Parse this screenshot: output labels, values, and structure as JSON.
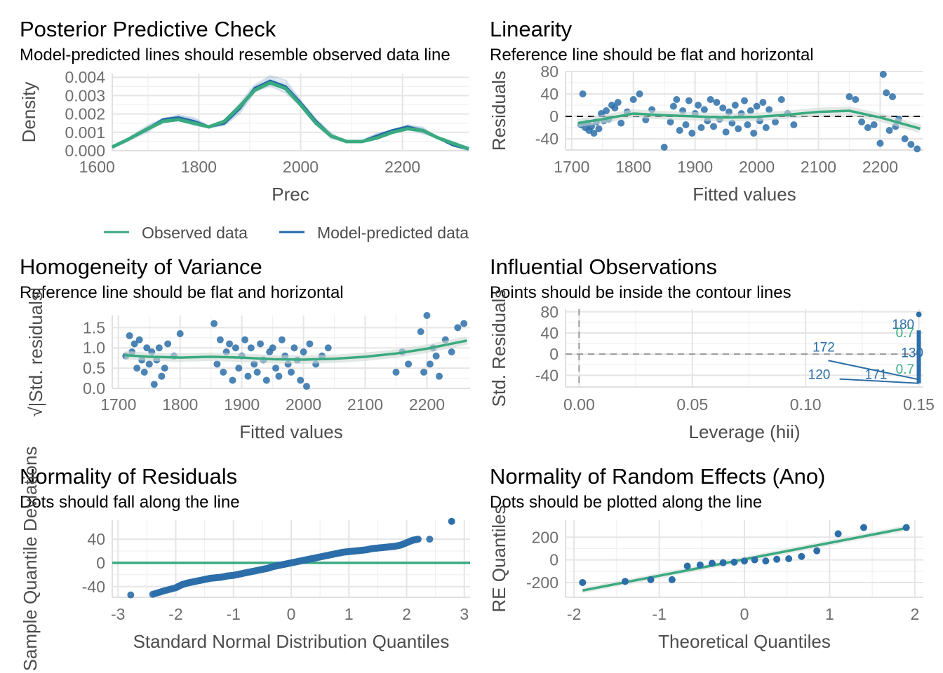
{
  "colors": {
    "observed": "#3aaa80",
    "predicted": "#2066a8",
    "points": "#2c6ea8",
    "reference": "#3aaa80"
  },
  "chart_data": [
    {
      "id": "ppc",
      "type": "line",
      "title": "Posterior Predictive Check",
      "subtitle": "Model-predicted lines should resemble observed data line",
      "xlabel": "Prec",
      "ylabel": "Density",
      "xlim": [
        1630,
        2330
      ],
      "ylim": [
        0,
        0.0042
      ],
      "xticks": [
        "1600",
        "1800",
        "2000",
        "2200"
      ],
      "yticks": [
        "0.000",
        "0.001",
        "0.002",
        "0.003",
        "0.004"
      ],
      "legend": [
        "Observed data",
        "Model-predicted data"
      ],
      "legend_position": "bottom",
      "series": [
        {
          "name": "Observed data",
          "x": [
            1630,
            1660,
            1700,
            1730,
            1760,
            1790,
            1820,
            1850,
            1880,
            1910,
            1940,
            1970,
            2000,
            2030,
            2060,
            2090,
            2120,
            2150,
            2180,
            2210,
            2240,
            2270,
            2300,
            2330
          ],
          "y": [
            0.0002,
            0.0006,
            0.0012,
            0.0016,
            0.0017,
            0.0015,
            0.0013,
            0.0016,
            0.0024,
            0.0033,
            0.0037,
            0.0034,
            0.0025,
            0.0015,
            0.0008,
            0.0005,
            0.0005,
            0.0007,
            0.001,
            0.0012,
            0.0011,
            0.0007,
            0.0004,
            0.0001
          ]
        },
        {
          "name": "Model-predicted data",
          "x": [
            1630,
            1660,
            1700,
            1730,
            1760,
            1790,
            1820,
            1850,
            1880,
            1910,
            1940,
            1970,
            2000,
            2030,
            2060,
            2090,
            2120,
            2150,
            2180,
            2210,
            2240,
            2270,
            2300,
            2330
          ],
          "y": [
            0.0002,
            0.0006,
            0.0012,
            0.0017,
            0.0018,
            0.0016,
            0.0013,
            0.0015,
            0.0023,
            0.0034,
            0.0038,
            0.0035,
            0.0026,
            0.0016,
            0.0008,
            0.0005,
            0.0005,
            0.0008,
            0.0011,
            0.0013,
            0.0011,
            0.0007,
            0.0003,
            0.0001
          ]
        }
      ]
    },
    {
      "id": "linearity",
      "type": "scatter",
      "title": "Linearity",
      "subtitle": "Reference line should be flat and horizontal",
      "xlabel": "Fitted values",
      "ylabel": "Residuals",
      "xlim": [
        1690,
        2270
      ],
      "ylim": [
        -60,
        80
      ],
      "xticks": [
        "1700",
        "1800",
        "1900",
        "2000",
        "2100",
        "2200"
      ],
      "yticks": [
        "-40",
        "0",
        "40",
        "80"
      ],
      "points_x": [
        1715,
        1718,
        1722,
        1725,
        1728,
        1732,
        1736,
        1740,
        1744,
        1748,
        1752,
        1756,
        1760,
        1765,
        1770,
        1775,
        1780,
        1790,
        1800,
        1810,
        1820,
        1830,
        1850,
        1860,
        1865,
        1870,
        1875,
        1880,
        1885,
        1890,
        1895,
        1900,
        1905,
        1910,
        1915,
        1920,
        1925,
        1930,
        1935,
        1940,
        1945,
        1950,
        1955,
        1960,
        1965,
        1970,
        1975,
        1980,
        1985,
        1990,
        1995,
        2000,
        2005,
        2010,
        2015,
        2020,
        2030,
        2040,
        2050,
        2060,
        2150,
        2160,
        2170,
        2180,
        2190,
        2200,
        2205,
        2210,
        2215,
        2220,
        2225,
        2230,
        2240,
        2250,
        2260
      ],
      "points_y": [
        -15,
        40,
        -20,
        -12,
        -25,
        -18,
        -30,
        -10,
        -22,
        5,
        -8,
        10,
        -5,
        20,
        15,
        25,
        -12,
        8,
        30,
        40,
        -6,
        12,
        -55,
        -10,
        18,
        30,
        -25,
        10,
        -15,
        28,
        -30,
        5,
        20,
        -20,
        12,
        -8,
        30,
        -18,
        25,
        -5,
        15,
        -28,
        8,
        -12,
        20,
        -22,
        5,
        28,
        -15,
        10,
        -30,
        18,
        -8,
        25,
        -20,
        12,
        -10,
        30,
        5,
        -15,
        35,
        30,
        -10,
        -20,
        -15,
        -48,
        75,
        42,
        -25,
        35,
        -18,
        -5,
        -40,
        -50,
        -58
      ],
      "smooth_x": [
        1710,
        1750,
        1800,
        1850,
        1900,
        1950,
        2000,
        2050,
        2100,
        2150,
        2200,
        2265
      ],
      "smooth_y": [
        -12,
        -5,
        5,
        2,
        0,
        -2,
        -1,
        3,
        8,
        10,
        -2,
        -22
      ],
      "reference_y": 0
    },
    {
      "id": "homogeneity",
      "type": "scatter",
      "title": "Homogeneity of Variance",
      "subtitle": "Reference line should be flat and horizontal",
      "xlabel": "Fitted values",
      "ylabel": "√|Std. residuals|",
      "xlim": [
        1690,
        2270
      ],
      "ylim": [
        0,
        1.8
      ],
      "xticks": [
        "1700",
        "1800",
        "1900",
        "2000",
        "2100",
        "2200"
      ],
      "yticks": [
        "0.0",
        "0.5",
        "1.0",
        "1.5"
      ],
      "points_x": [
        1712,
        1718,
        1722,
        1726,
        1730,
        1734,
        1738,
        1742,
        1746,
        1750,
        1754,
        1758,
        1762,
        1766,
        1770,
        1775,
        1780,
        1790,
        1800,
        1855,
        1860,
        1865,
        1870,
        1875,
        1880,
        1885,
        1890,
        1895,
        1900,
        1905,
        1910,
        1915,
        1920,
        1925,
        1930,
        1935,
        1940,
        1945,
        1950,
        1955,
        1960,
        1965,
        1970,
        1975,
        1980,
        1985,
        1990,
        1995,
        2000,
        2005,
        2010,
        2020,
        2030,
        2040,
        2150,
        2160,
        2170,
        2190,
        2195,
        2200,
        2205,
        2210,
        2215,
        2220,
        2230,
        2240,
        2250,
        2260
      ],
      "points_y": [
        0.8,
        1.3,
        0.9,
        1.1,
        0.5,
        1.2,
        0.7,
        0.4,
        1.0,
        0.6,
        0.9,
        0.1,
        0.7,
        1.0,
        0.3,
        0.5,
        1.1,
        0.8,
        1.35,
        1.6,
        0.6,
        1.2,
        0.4,
        0.9,
        1.1,
        0.2,
        1.0,
        0.5,
        0.8,
        1.2,
        0.3,
        1.0,
        0.6,
        0.4,
        1.1,
        0.7,
        0.2,
        0.9,
        1.0,
        0.5,
        0.3,
        1.2,
        0.8,
        0.6,
        0.4,
        1.0,
        0.7,
        0.2,
        0.9,
        0.05,
        1.1,
        0.6,
        0.8,
        1.0,
        0.4,
        0.9,
        0.6,
        1.4,
        0.4,
        1.8,
        0.6,
        1.0,
        0.8,
        0.3,
        1.2,
        0.9,
        1.5,
        1.6
      ],
      "smooth_x": [
        1710,
        1750,
        1800,
        1850,
        1900,
        1950,
        2000,
        2050,
        2100,
        2150,
        2200,
        2265
      ],
      "smooth_y": [
        0.82,
        0.78,
        0.76,
        0.78,
        0.76,
        0.72,
        0.71,
        0.73,
        0.78,
        0.86,
        0.98,
        1.18
      ]
    },
    {
      "id": "influential",
      "type": "scatter",
      "title": "Influential Observations",
      "subtitle": "Points should be inside the contour lines",
      "xlabel": "Leverage (hii)",
      "ylabel": "Std. Residuals",
      "xlim": [
        -0.006,
        0.152
      ],
      "ylim": [
        -62,
        85
      ],
      "xticks": [
        "0.00",
        "0.05",
        "0.10",
        "0.15"
      ],
      "yticks": [
        "-40",
        "0",
        "40",
        "80"
      ],
      "leverage_value": 0.15,
      "residual_range": [
        -55,
        75
      ],
      "contour_labels": [
        "0.7",
        "0.7"
      ],
      "point_labels": [
        "180",
        "172",
        "130",
        "120",
        "171"
      ]
    },
    {
      "id": "qq",
      "type": "scatter",
      "title": "Normality of Residuals",
      "subtitle": "Dots should fall along the line",
      "xlabel": "Standard Normal Distribution Quantiles",
      "ylabel": "Sample Quantile Deviations",
      "xlim": [
        -3.1,
        3.1
      ],
      "ylim": [
        -58,
        72
      ],
      "xticks": [
        "-3",
        "-2",
        "-1",
        "0",
        "1",
        "2",
        "3"
      ],
      "yticks": [
        "-40",
        "0",
        "40"
      ],
      "points_x": [
        -2.78,
        -2.4,
        -2.2,
        -2.0,
        -1.9,
        -1.8,
        -1.7,
        -1.6,
        -1.5,
        -1.4,
        -1.3,
        -1.2,
        -1.1,
        -1.0,
        -0.9,
        -0.8,
        -0.7,
        -0.6,
        -0.5,
        -0.4,
        -0.3,
        -0.2,
        -0.1,
        0,
        0.1,
        0.2,
        0.3,
        0.4,
        0.5,
        0.6,
        0.7,
        0.8,
        0.9,
        1.0,
        1.1,
        1.2,
        1.3,
        1.4,
        1.5,
        1.6,
        1.7,
        1.8,
        1.9,
        2.0,
        2.1,
        2.2,
        2.4,
        2.78
      ],
      "points_y": [
        -54,
        -53,
        -47,
        -42,
        -37,
        -34,
        -32,
        -30,
        -28,
        -26,
        -25,
        -24,
        -22,
        -21,
        -19,
        -17,
        -15,
        -13,
        -11,
        -9,
        -6,
        -4,
        -2,
        0,
        2,
        4,
        6,
        8,
        10,
        12,
        14,
        16,
        18,
        19,
        20,
        21,
        22,
        24,
        25,
        26,
        27,
        28,
        30,
        34,
        38,
        40,
        40,
        70
      ],
      "reference_y": 0
    },
    {
      "id": "re_qq",
      "type": "scatter",
      "title": "Normality of Random Effects (Ano)",
      "subtitle": "Dots should be plotted along the line",
      "xlabel": "Theoretical Quantiles",
      "ylabel": "RE Quantiles",
      "xlim": [
        -2.1,
        2.1
      ],
      "ylim": [
        -330,
        350
      ],
      "xticks": [
        "-2",
        "-1",
        "0",
        "1",
        "2"
      ],
      "yticks": [
        "-200",
        "0",
        "200"
      ],
      "points_x": [
        -1.9,
        -1.4,
        -1.1,
        -0.85,
        -0.67,
        -0.52,
        -0.38,
        -0.25,
        -0.12,
        0,
        0.12,
        0.25,
        0.38,
        0.52,
        0.67,
        0.85,
        1.1,
        1.4,
        1.9
      ],
      "points_y": [
        -200,
        -190,
        -175,
        -175,
        -55,
        -45,
        -30,
        -25,
        -20,
        -10,
        0,
        -10,
        5,
        10,
        30,
        80,
        230,
        285,
        285
      ],
      "fit_x": [
        -1.9,
        1.9
      ],
      "fit_y": [
        -270,
        280
      ]
    }
  ]
}
